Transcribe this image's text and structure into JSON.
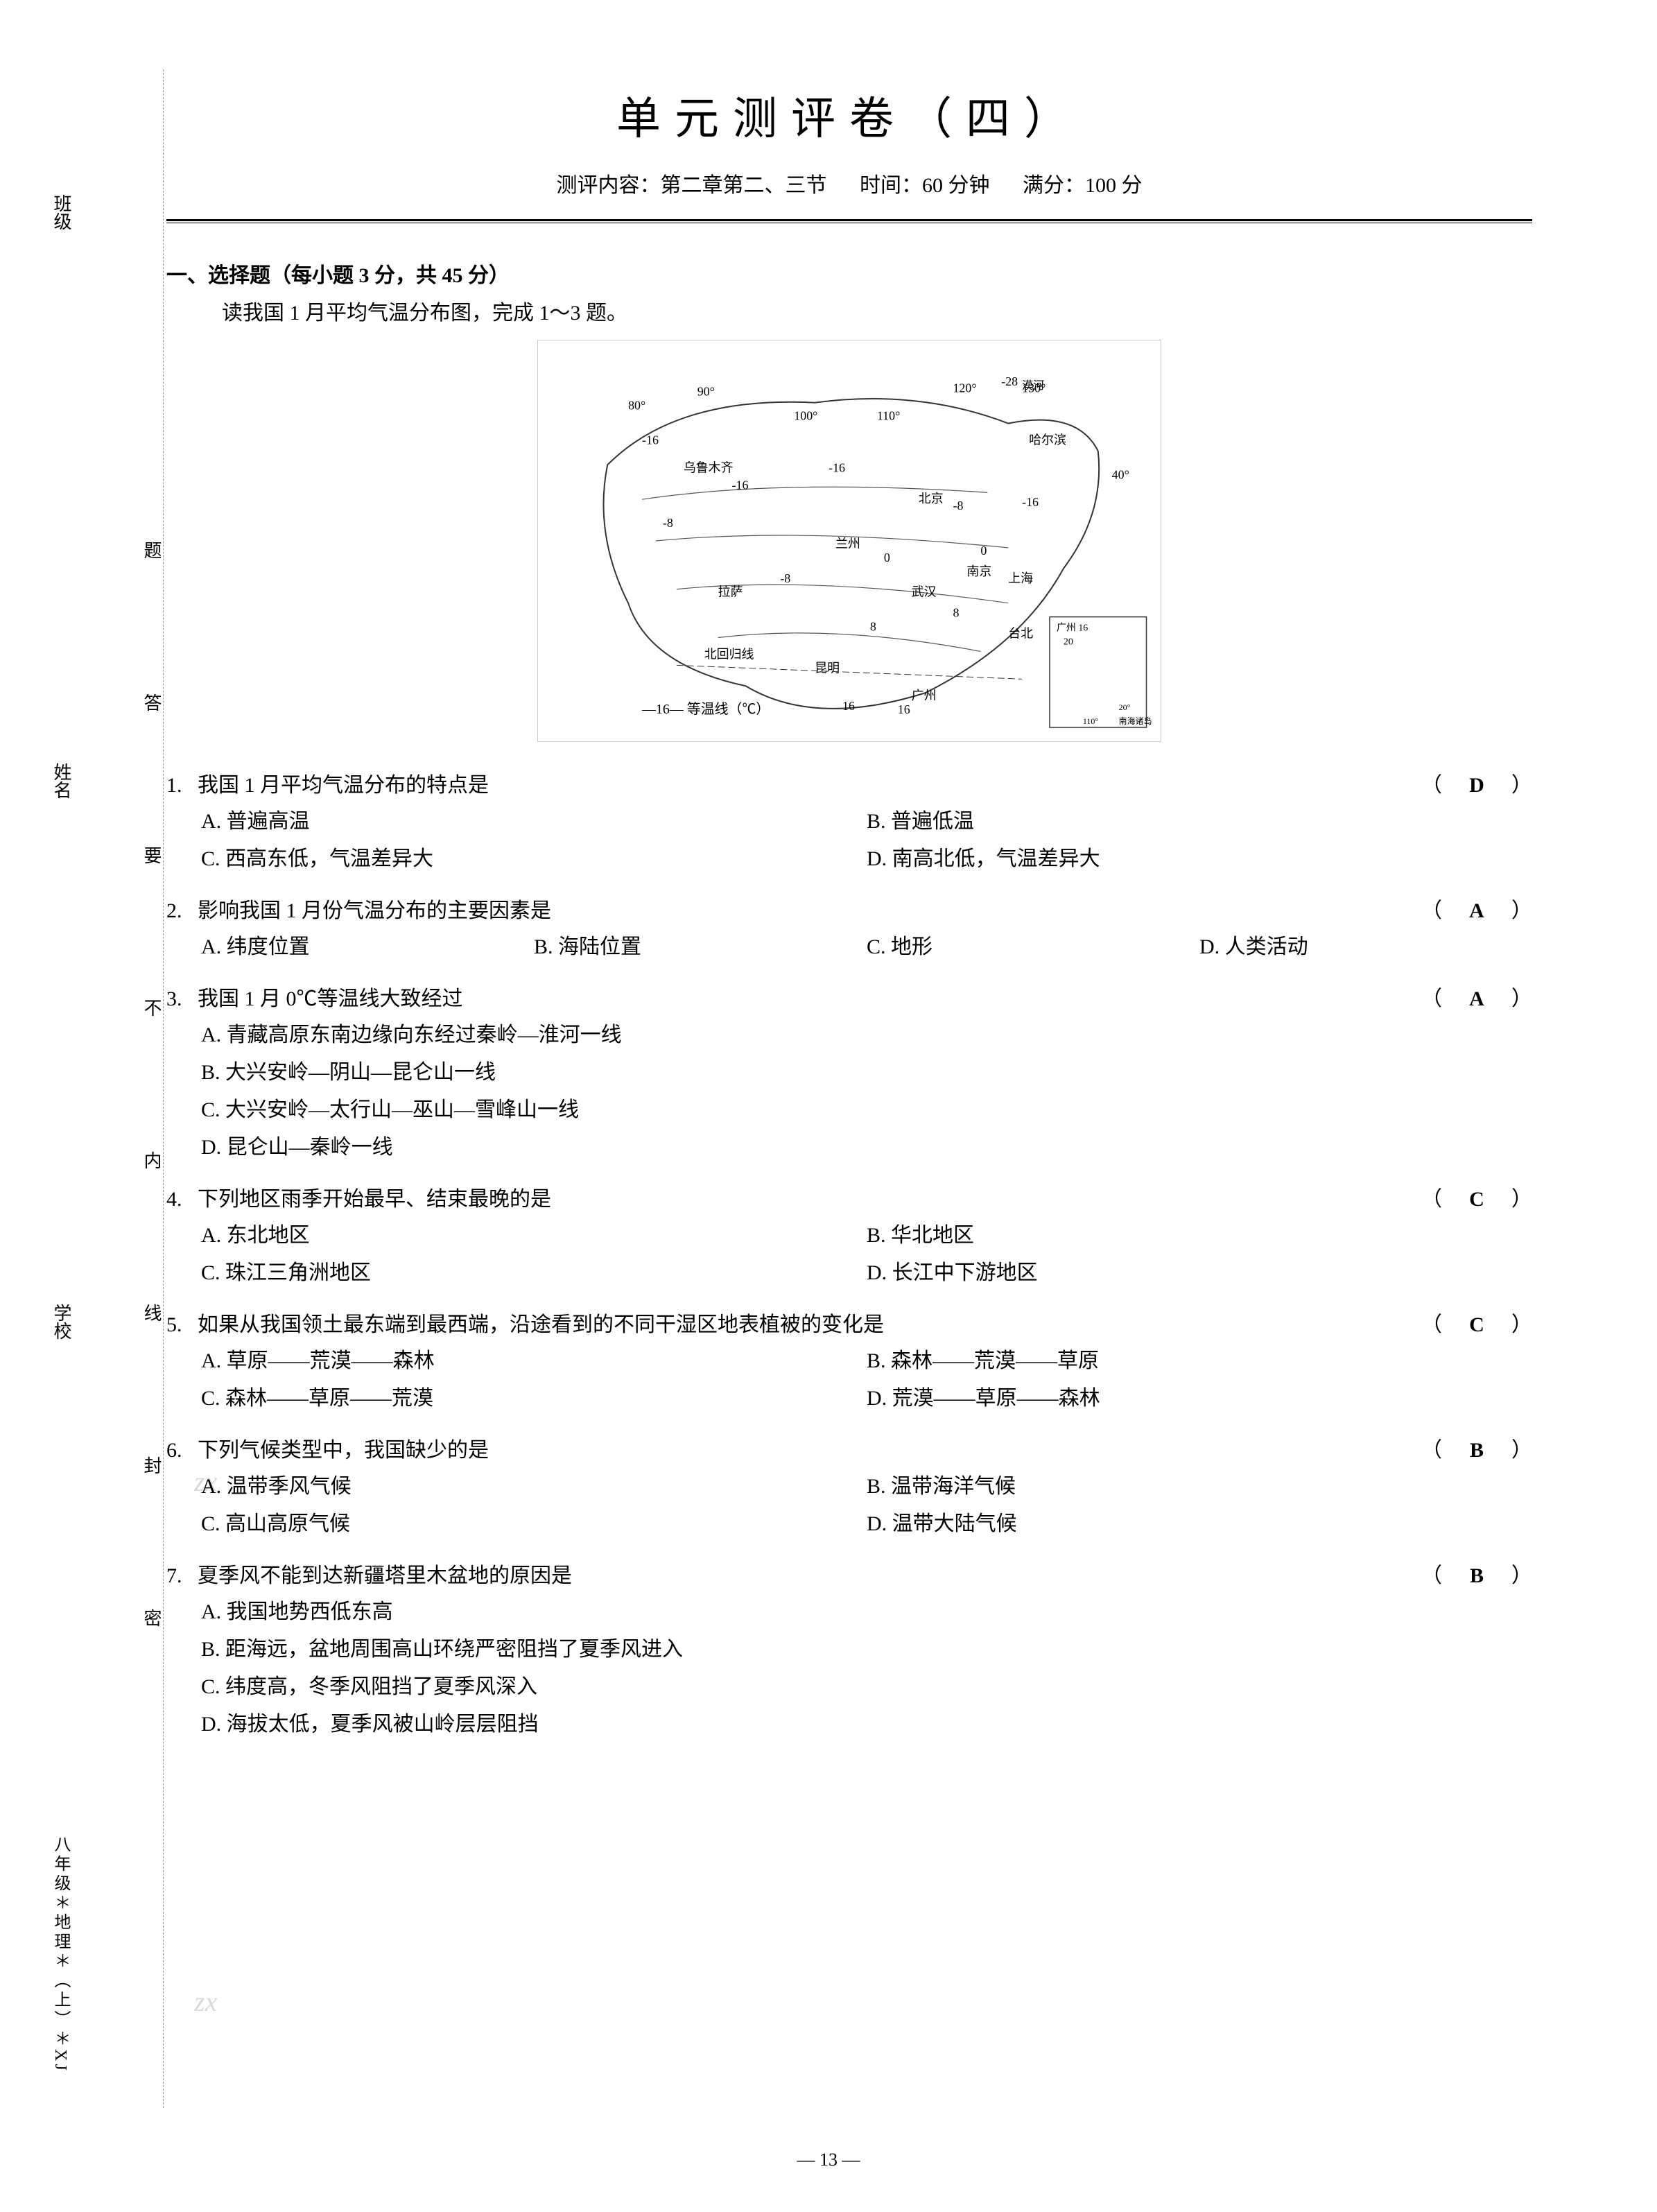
{
  "title": "单元测评卷（四）",
  "subtitle": {
    "content": "测评内容：第二章第二、三节",
    "time": "时间：60 分钟",
    "score": "满分：100 分"
  },
  "leftMargin": {
    "labels": [
      "班级",
      "姓名",
      "学校"
    ],
    "sealText": [
      "题",
      "答",
      "要",
      "不",
      "内",
      "线",
      "封",
      "密"
    ],
    "gradeInfo": "八年级＊地理＊（上）＊XJ"
  },
  "sectionHeader": "一、选择题（每小题 3 分，共 45 分）",
  "instruction": "读我国 1 月平均气温分布图，完成 1～3 题。",
  "map": {
    "legend": "—16— 等温线（℃）",
    "cities": [
      "哈尔滨",
      "乌鲁木齐",
      "北京",
      "兰州",
      "拉萨",
      "武汉",
      "南京",
      "上海",
      "昆明",
      "广州",
      "台北",
      "漠河"
    ],
    "longitudes": [
      "80°",
      "90°",
      "100°",
      "110°",
      "120°",
      "130°"
    ],
    "latitudes": [
      "40°",
      "20°"
    ],
    "tropic": "北回归线",
    "temps": [
      "-28",
      "-16",
      "-8",
      "0",
      "8",
      "16",
      "20"
    ],
    "inset": "南海诸岛"
  },
  "questions": [
    {
      "num": "1.",
      "stem": "我国 1 月平均气温分布的特点是",
      "answer": "D",
      "layout": "2col",
      "options": [
        "A. 普遍高温",
        "B. 普遍低温",
        "C. 西高东低，气温差异大",
        "D. 南高北低，气温差异大"
      ]
    },
    {
      "num": "2.",
      "stem": "影响我国 1 月份气温分布的主要因素是",
      "answer": "A",
      "layout": "4col",
      "options": [
        "A. 纬度位置",
        "B. 海陆位置",
        "C. 地形",
        "D. 人类活动"
      ]
    },
    {
      "num": "3.",
      "stem": "我国 1 月 0℃等温线大致经过",
      "answer": "A",
      "layout": "1col",
      "options": [
        "A. 青藏高原东南边缘向东经过秦岭—淮河一线",
        "B. 大兴安岭—阴山—昆仑山一线",
        "C. 大兴安岭—太行山—巫山—雪峰山一线",
        "D. 昆仑山—秦岭一线"
      ]
    },
    {
      "num": "4.",
      "stem": "下列地区雨季开始最早、结束最晚的是",
      "answer": "C",
      "layout": "2col",
      "options": [
        "A. 东北地区",
        "B. 华北地区",
        "C. 珠江三角洲地区",
        "D. 长江中下游地区"
      ]
    },
    {
      "num": "5.",
      "stem": "如果从我国领土最东端到最西端，沿途看到的不同干湿区地表植被的变化是",
      "answer": "C",
      "layout": "2col",
      "options": [
        "A. 草原——荒漠——森林",
        "B. 森林——荒漠——草原",
        "C. 森林——草原——荒漠",
        "D. 荒漠——草原——森林"
      ]
    },
    {
      "num": "6.",
      "stem": "下列气候类型中，我国缺少的是",
      "answer": "B",
      "layout": "2col",
      "options": [
        "A. 温带季风气候",
        "B. 温带海洋气候",
        "C. 高山高原气候",
        "D. 温带大陆气候"
      ]
    },
    {
      "num": "7.",
      "stem": "夏季风不能到达新疆塔里木盆地的原因是",
      "answer": "B",
      "layout": "1col",
      "options": [
        "A. 我国地势西低东高",
        "B. 距海远，盆地周围高山环绕严密阻挡了夏季风进入",
        "C. 纬度高，冬季风阻挡了夏季风深入",
        "D. 海拔太低，夏季风被山岭层层阻挡"
      ]
    }
  ],
  "pageNumber": "— 13 —"
}
